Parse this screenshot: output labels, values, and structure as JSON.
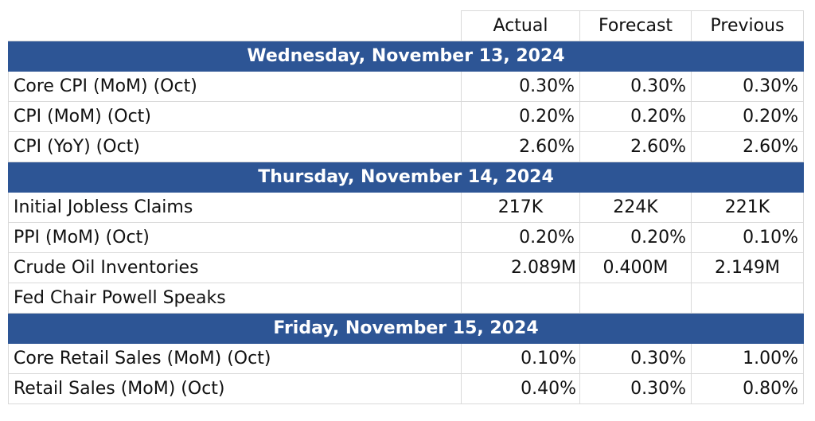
{
  "headers": [
    "",
    "Actual",
    "Forecast",
    "Previous"
  ],
  "sections": [
    {
      "date": "Wednesday, November 13, 2024",
      "rows": [
        {
          "event": "Core CPI (MoM) (Oct)",
          "actual": "0.30%",
          "forecast": "0.30%",
          "previous": "0.30%"
        },
        {
          "event": "CPI (MoM) (Oct)",
          "actual": "0.20%",
          "forecast": "0.20%",
          "previous": "0.20%"
        },
        {
          "event": "CPI (YoY) (Oct)",
          "actual": "2.60%",
          "forecast": "2.60%",
          "previous": "2.60%"
        }
      ]
    },
    {
      "date": "Thursday, November 14, 2024",
      "rows": [
        {
          "event": "Initial Jobless Claims",
          "actual": "217K",
          "forecast": "224K",
          "previous": "221K"
        },
        {
          "event": "PPI (MoM) (Oct)",
          "actual": "0.20%",
          "forecast": "0.20%",
          "previous": "0.10%"
        },
        {
          "event": "Crude Oil Inventories",
          "actual": "2.089M",
          "forecast": "0.400M",
          "previous": "2.149M"
        },
        {
          "event": "Fed Chair Powell Speaks",
          "actual": "",
          "forecast": "",
          "previous": ""
        }
      ]
    },
    {
      "date": "Friday, November 15, 2024",
      "rows": [
        {
          "event": "Core Retail Sales (MoM) (Oct)",
          "actual": "0.10%",
          "forecast": "0.30%",
          "previous": "1.00%"
        },
        {
          "event": "Retail Sales (MoM) (Oct)",
          "actual": "0.40%",
          "forecast": "0.30%",
          "previous": "0.80%"
        }
      ]
    }
  ],
  "colors": {
    "header_band": "#2d5595",
    "grid": "#d9d9d9"
  }
}
